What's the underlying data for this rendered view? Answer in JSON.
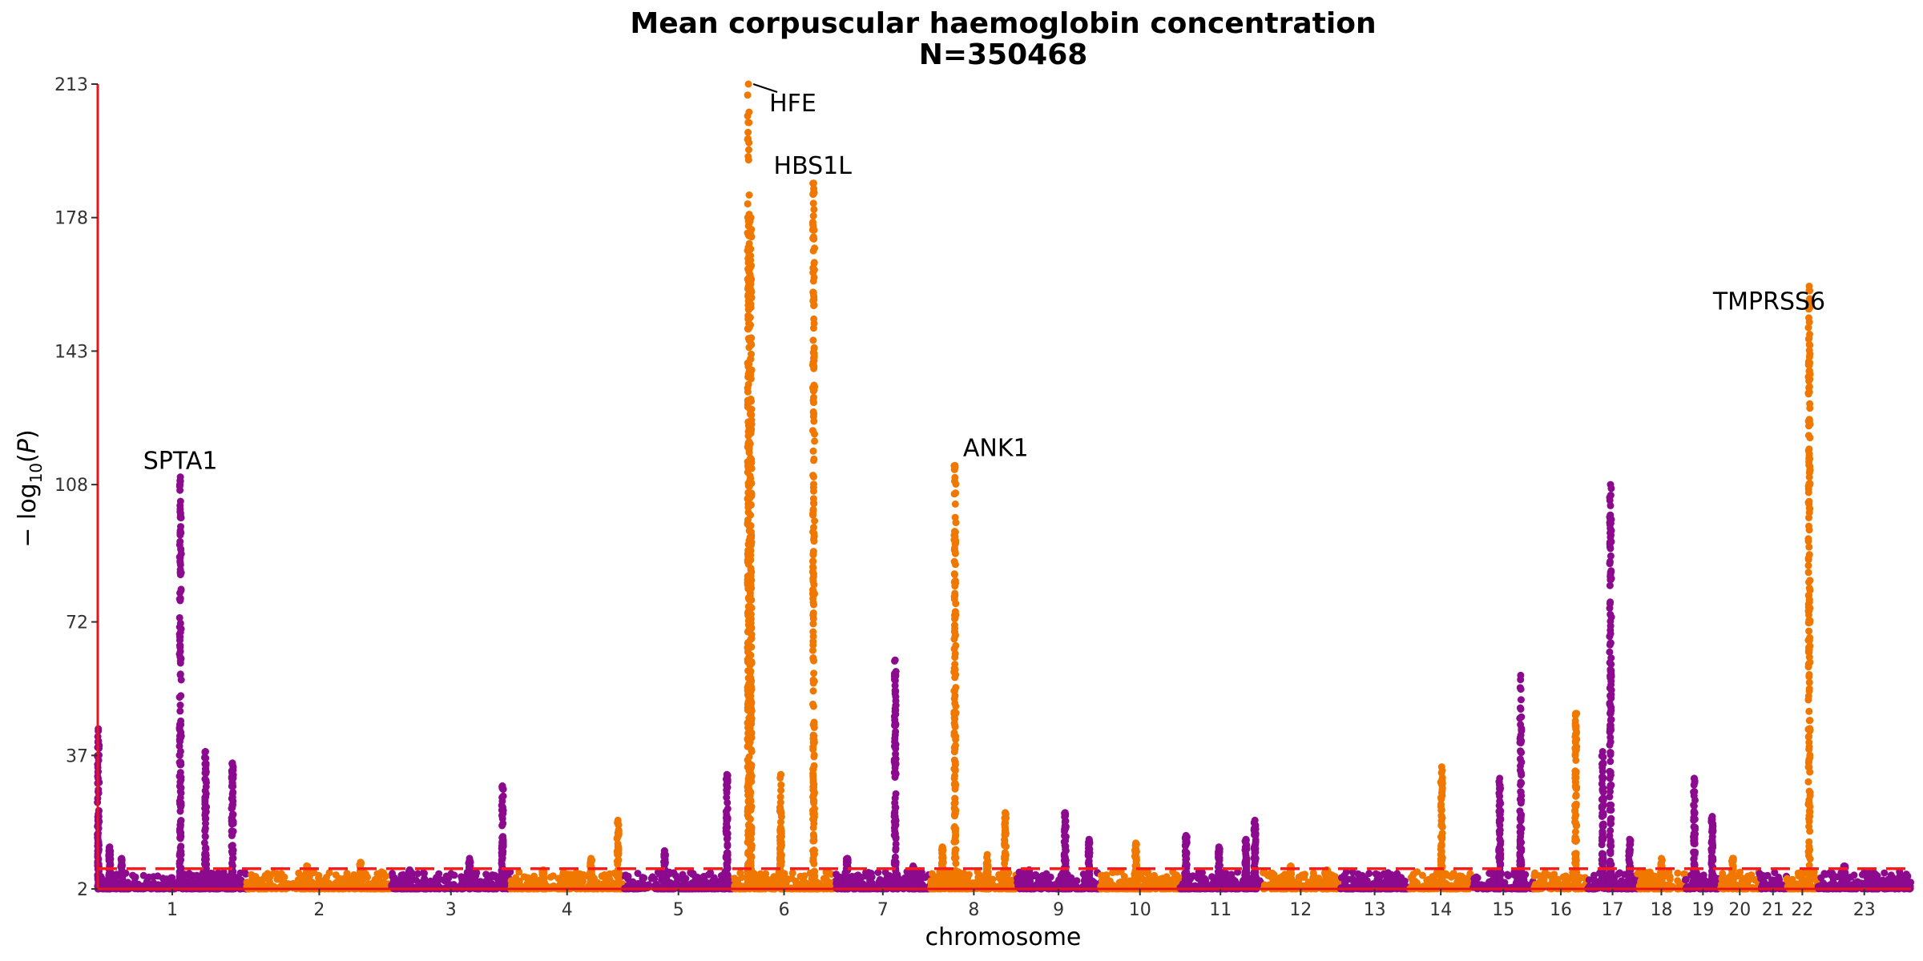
{
  "chart_data": {
    "type": "scatter",
    "subtype": "manhattan",
    "title": "Mean corpuscular haemoglobin concentration",
    "subtitle": "N=350468",
    "xlabel": "chromosome",
    "ylabel": "− log10(P)",
    "ylim": [
      2,
      213
    ],
    "yticks": [
      2,
      37,
      72,
      108,
      143,
      178,
      213
    ],
    "threshold": 7.3,
    "colors": {
      "odd": "#8B0A8E",
      "even": "#F07800",
      "axis": "#E8141B",
      "threshold": "#FF1A1A"
    },
    "chromosomes": [
      {
        "label": "1",
        "start": 0,
        "end": 249
      },
      {
        "label": "2",
        "start": 249,
        "end": 491
      },
      {
        "label": "3",
        "start": 491,
        "end": 689
      },
      {
        "label": "4",
        "start": 689,
        "end": 879
      },
      {
        "label": "5",
        "start": 879,
        "end": 1061
      },
      {
        "label": "6",
        "start": 1061,
        "end": 1232
      },
      {
        "label": "7",
        "start": 1232,
        "end": 1391
      },
      {
        "label": "8",
        "start": 1391,
        "end": 1536
      },
      {
        "label": "9",
        "start": 1536,
        "end": 1674
      },
      {
        "label": "10",
        "start": 1674,
        "end": 1808
      },
      {
        "label": "11",
        "start": 1808,
        "end": 1943
      },
      {
        "label": "12",
        "start": 1943,
        "end": 2076
      },
      {
        "label": "13",
        "start": 2076,
        "end": 2190
      },
      {
        "label": "14",
        "start": 2190,
        "end": 2297
      },
      {
        "label": "15",
        "start": 2297,
        "end": 2399
      },
      {
        "label": "16",
        "start": 2399,
        "end": 2489
      },
      {
        "label": "17",
        "start": 2489,
        "end": 2572
      },
      {
        "label": "18",
        "start": 2572,
        "end": 2652
      },
      {
        "label": "19",
        "start": 2652,
        "end": 2711
      },
      {
        "label": "20",
        "start": 2711,
        "end": 2775
      },
      {
        "label": "21",
        "start": 2775,
        "end": 2822
      },
      {
        "label": "22",
        "start": 2822,
        "end": 2873
      },
      {
        "label": "23",
        "start": 2873,
        "end": 3029
      }
    ],
    "peaks": [
      {
        "chr": "1",
        "pos": 1,
        "max": 44
      },
      {
        "chr": "1",
        "pos": 20,
        "max": 13
      },
      {
        "chr": "1",
        "pos": 40,
        "max": 10
      },
      {
        "chr": "1",
        "pos": 138,
        "max": 110,
        "gene": "SPTA1"
      },
      {
        "chr": "1",
        "pos": 180,
        "max": 38
      },
      {
        "chr": "1",
        "pos": 225,
        "max": 35
      },
      {
        "chr": "2",
        "pos": 100,
        "max": 8
      },
      {
        "chr": "2",
        "pos": 190,
        "max": 9
      },
      {
        "chr": "3",
        "pos": 30,
        "max": 7
      },
      {
        "chr": "3",
        "pos": 130,
        "max": 10
      },
      {
        "chr": "3",
        "pos": 185,
        "max": 29
      },
      {
        "chr": "4",
        "pos": 55,
        "max": 7
      },
      {
        "chr": "4",
        "pos": 135,
        "max": 10
      },
      {
        "chr": "4",
        "pos": 180,
        "max": 20
      },
      {
        "chr": "5",
        "pos": 68,
        "max": 12
      },
      {
        "chr": "5",
        "pos": 172,
        "max": 32
      },
      {
        "chr": "6",
        "pos": 26,
        "max": 213,
        "gene": "HFE"
      },
      {
        "chr": "6",
        "pos": 30,
        "max": 178
      },
      {
        "chr": "6",
        "pos": 80,
        "max": 32
      },
      {
        "chr": "6",
        "pos": 135,
        "max": 187,
        "gene": "HBS1L"
      },
      {
        "chr": "7",
        "pos": 20,
        "max": 10
      },
      {
        "chr": "7",
        "pos": 100,
        "max": 62
      },
      {
        "chr": "7",
        "pos": 130,
        "max": 8
      },
      {
        "chr": "8",
        "pos": 20,
        "max": 13
      },
      {
        "chr": "8",
        "pos": 41,
        "max": 113,
        "gene": "ANK1"
      },
      {
        "chr": "8",
        "pos": 95,
        "max": 11
      },
      {
        "chr": "8",
        "pos": 125,
        "max": 22
      },
      {
        "chr": "9",
        "pos": 20,
        "max": 7
      },
      {
        "chr": "9",
        "pos": 80,
        "max": 22
      },
      {
        "chr": "9",
        "pos": 120,
        "max": 15
      },
      {
        "chr": "10",
        "pos": 60,
        "max": 14
      },
      {
        "chr": "11",
        "pos": 10,
        "max": 16
      },
      {
        "chr": "11",
        "pos": 65,
        "max": 13
      },
      {
        "chr": "11",
        "pos": 110,
        "max": 15
      },
      {
        "chr": "11",
        "pos": 125,
        "max": 20
      },
      {
        "chr": "12",
        "pos": 50,
        "max": 8
      },
      {
        "chr": "12",
        "pos": 110,
        "max": 7
      },
      {
        "chr": "14",
        "pos": 55,
        "max": 34
      },
      {
        "chr": "15",
        "pos": 45,
        "max": 31
      },
      {
        "chr": "15",
        "pos": 80,
        "max": 58
      },
      {
        "chr": "16",
        "pos": 70,
        "max": 48
      },
      {
        "chr": "17",
        "pos": 25,
        "max": 38
      },
      {
        "chr": "17",
        "pos": 38,
        "max": 108
      },
      {
        "chr": "17",
        "pos": 70,
        "max": 15
      },
      {
        "chr": "18",
        "pos": 40,
        "max": 10
      },
      {
        "chr": "19",
        "pos": 15,
        "max": 31
      },
      {
        "chr": "19",
        "pos": 45,
        "max": 21
      },
      {
        "chr": "20",
        "pos": 20,
        "max": 10
      },
      {
        "chr": "22",
        "pos": 37,
        "max": 160,
        "gene": "TMPRSS6"
      },
      {
        "chr": "23",
        "pos": 45,
        "max": 8
      }
    ]
  }
}
